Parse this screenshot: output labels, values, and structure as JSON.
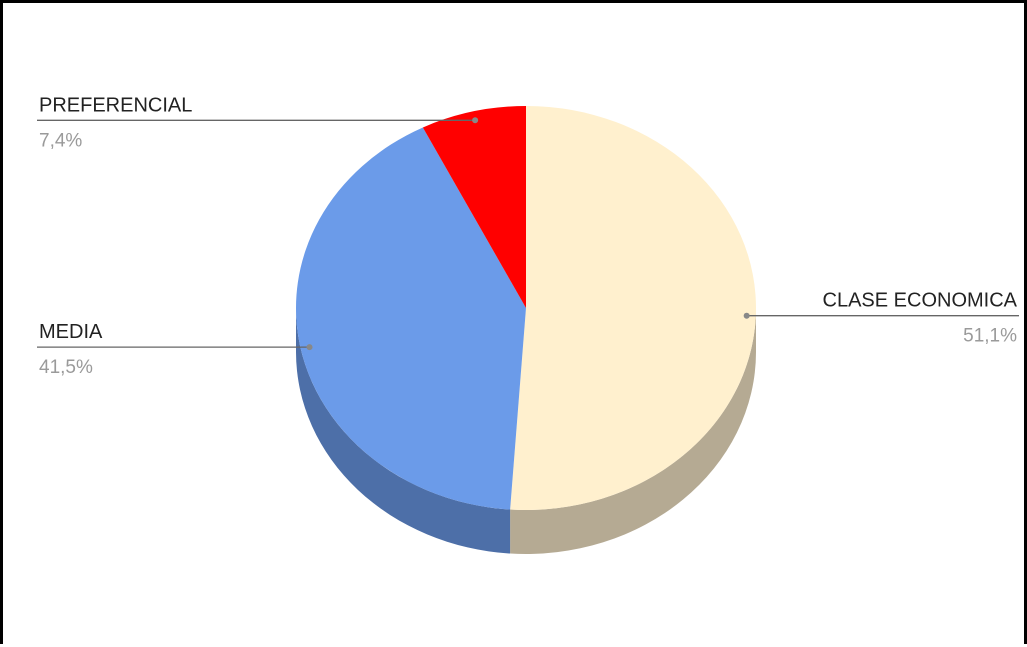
{
  "chart_data": {
    "type": "pie",
    "three_d": true,
    "title": "",
    "start_angle_deg": 0,
    "direction": "clockwise",
    "slices": [
      {
        "name": "CLASE ECONOMICA",
        "value": 51.1,
        "label": "51,1%",
        "color": "#FFF0CE",
        "side_color": "#B5AA93",
        "label_side": "right"
      },
      {
        "name": "MEDIA",
        "value": 41.5,
        "label": "41,5%",
        "color": "#6B9BE9",
        "side_color": "#4D6FA8",
        "label_side": "left"
      },
      {
        "name": "PREFERENCIAL",
        "value": 7.4,
        "label": "7,4%",
        "color": "#FF0000",
        "side_color": "#B00000",
        "label_side": "left"
      }
    ],
    "legend": "none",
    "leader_line_color": "#666666"
  }
}
